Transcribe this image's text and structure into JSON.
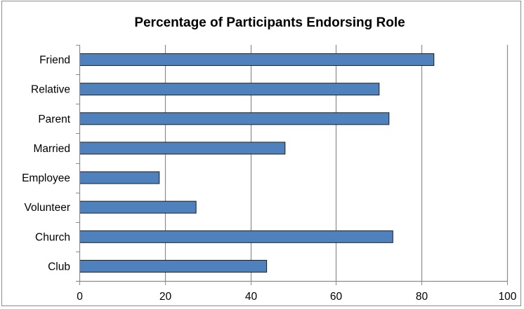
{
  "chart_data": {
    "type": "bar",
    "orientation": "horizontal",
    "title": "Percentage of Participants Endorsing Role",
    "categories": [
      "Friend",
      "Relative",
      "Parent",
      "Married",
      "Employee",
      "Volunteer",
      "Church",
      "Club"
    ],
    "values": [
      82.8,
      70.0,
      72.3,
      48.0,
      18.6,
      27.2,
      73.2,
      43.7
    ],
    "xlim": [
      0,
      100
    ],
    "x_ticks": [
      0,
      20,
      40,
      60,
      80,
      100
    ],
    "xlabel": "",
    "ylabel": "",
    "grid": "vertical",
    "legend": "none",
    "colors": {
      "bar_fill": "#4f81bd",
      "bar_stroke": "#1f1f1f",
      "grid": "#8c8c8c",
      "axis": "#8c8c8c"
    }
  }
}
